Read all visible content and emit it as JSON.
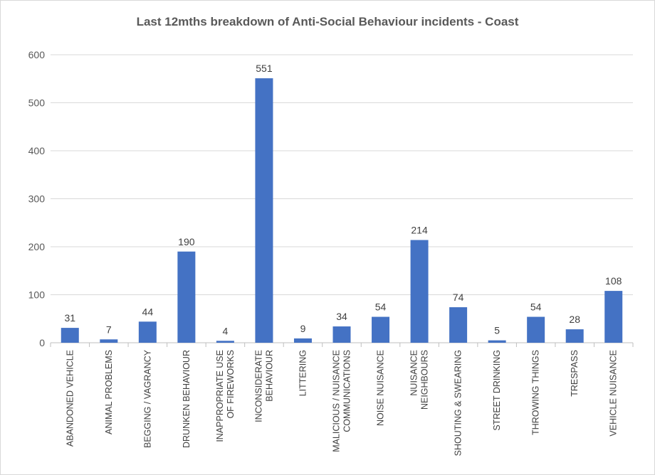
{
  "chart_data": {
    "type": "bar",
    "title": "Last 12mths breakdown of Anti-Social Behaviour incidents - Coast",
    "xlabel": "",
    "ylabel": "",
    "ylim": [
      0,
      600
    ],
    "yticks": [
      0,
      100,
      200,
      300,
      400,
      500,
      600
    ],
    "grid": true,
    "legend": "none",
    "bar_color": "#4472c4",
    "categories": [
      [
        "ABANDONED VEHICLE"
      ],
      [
        "ANIMAL PROBLEMS"
      ],
      [
        "BEGGING / VAGRANCY"
      ],
      [
        "DRUNKEN BEHAVIOUR"
      ],
      [
        "INAPPROPRIATE USE",
        "OF FIREWORKS"
      ],
      [
        "INCONSIDERATE",
        "BEHAVIOUR"
      ],
      [
        "LITTERING"
      ],
      [
        "MALICIOUS / NUISANCE",
        "COMMUNICATIONS"
      ],
      [
        "NOISE NUISANCE"
      ],
      [
        "NUISANCE",
        "NEIGHBOURS"
      ],
      [
        "SHOUTING & SWEARING"
      ],
      [
        "STREET DRINKING"
      ],
      [
        "THROWING THINGS"
      ],
      [
        "TRESPASS"
      ],
      [
        "VEHICLE NUISANCE"
      ]
    ],
    "values": [
      31,
      7,
      44,
      190,
      4,
      551,
      9,
      34,
      54,
      214,
      74,
      5,
      54,
      28,
      108
    ]
  }
}
